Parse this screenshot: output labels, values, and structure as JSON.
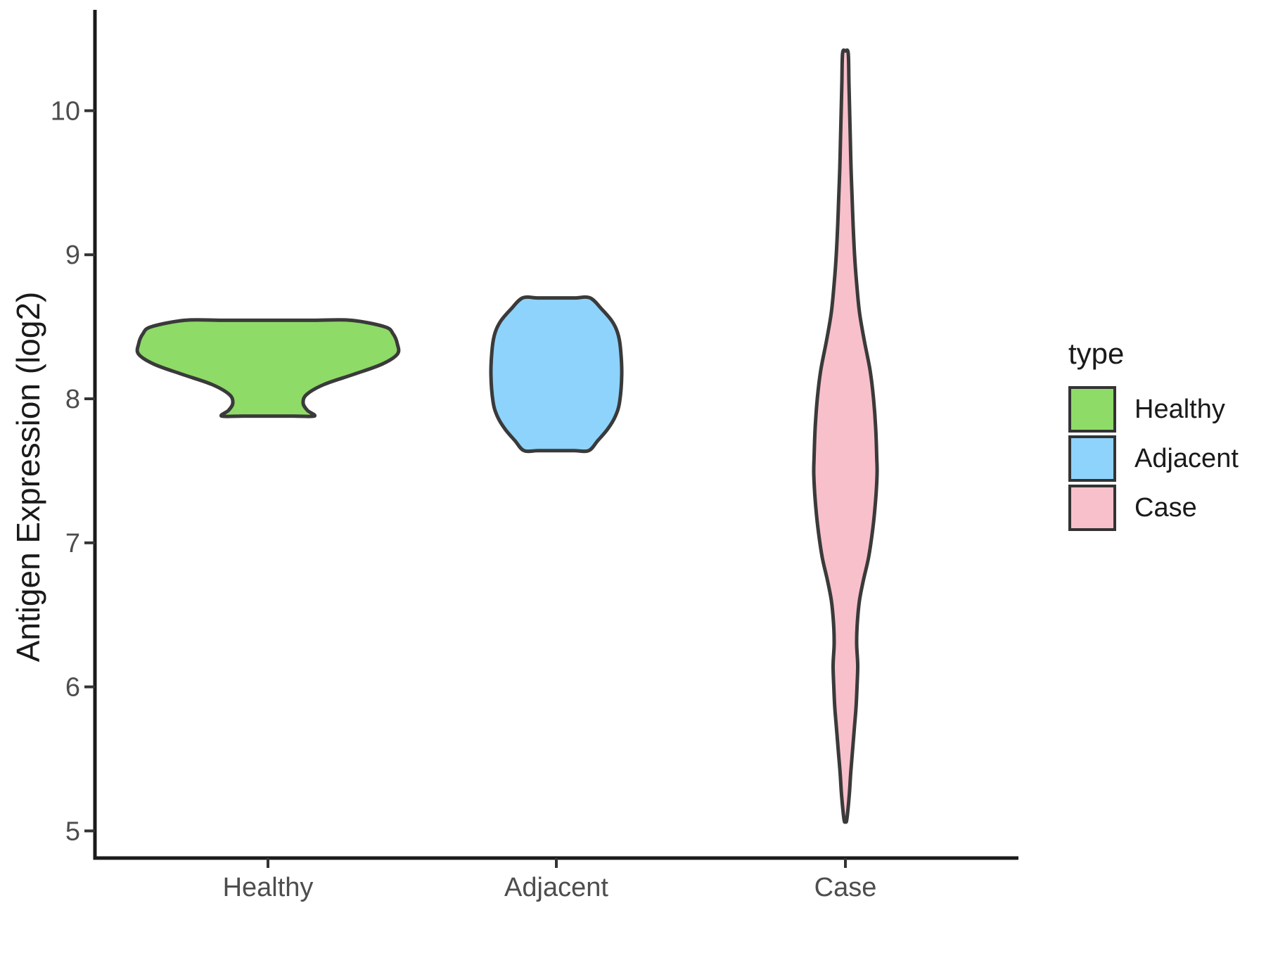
{
  "figure": {
    "background": "#ffffff"
  },
  "axes": {
    "y_title": "Antigen Expression (log2)",
    "x_title": "",
    "tick_label_color": "#4d4d4d",
    "axis_line_color": "#1a1a1a"
  },
  "legend": {
    "title": "type",
    "items": [
      {
        "label": "Healthy",
        "color": "#8edb68"
      },
      {
        "label": "Adjacent",
        "color": "#8ed3fb"
      },
      {
        "label": "Case",
        "color": "#f8c0cb"
      }
    ]
  },
  "chart_data": {
    "type": "violin",
    "title": "",
    "xlabel": "",
    "ylabel": "Antigen Expression (log2)",
    "categories": [
      "Healthy",
      "Adjacent",
      "Case"
    ],
    "y_ticks": [
      5,
      6,
      7,
      8,
      9,
      10
    ],
    "ylim": [
      4.8,
      10.7
    ],
    "grid": false,
    "legend_position": "right",
    "legend_title": "type",
    "profile_units": "[y_value, half_width_px]",
    "series": [
      {
        "name": "Healthy",
        "fill": "#8edb68",
        "outline": "#3a3a3a",
        "y_range": [
          7.88,
          8.55
        ],
        "peak_value": 8.33,
        "profile": [
          [
            8.545,
            118
          ],
          [
            8.5,
            166
          ],
          [
            8.45,
            178
          ],
          [
            8.38,
            184
          ],
          [
            8.31,
            184
          ],
          [
            8.24,
            162
          ],
          [
            8.17,
            122
          ],
          [
            8.1,
            80
          ],
          [
            8.03,
            55
          ],
          [
            7.97,
            50
          ],
          [
            7.92,
            56
          ],
          [
            7.88,
            66
          ]
        ]
      },
      {
        "name": "Adjacent",
        "fill": "#8ed3fb",
        "outline": "#3a3a3a",
        "y_range": [
          7.64,
          8.7
        ],
        "peak_value": 8.17,
        "profile": [
          [
            8.7,
            48
          ],
          [
            8.62,
            65
          ],
          [
            8.54,
            79
          ],
          [
            8.46,
            87
          ],
          [
            8.36,
            91
          ],
          [
            8.17,
            93
          ],
          [
            7.98,
            90
          ],
          [
            7.88,
            84
          ],
          [
            7.79,
            73
          ],
          [
            7.71,
            59
          ],
          [
            7.64,
            46
          ]
        ]
      },
      {
        "name": "Case",
        "fill": "#f8c0cb",
        "outline": "#3a3a3a",
        "y_range": [
          5.08,
          10.4
        ],
        "peak_value": 7.5,
        "profile": [
          [
            10.4,
            4
          ],
          [
            10.2,
            5
          ],
          [
            10.0,
            6
          ],
          [
            9.8,
            7
          ],
          [
            9.6,
            8
          ],
          [
            9.4,
            9.5
          ],
          [
            9.2,
            11
          ],
          [
            9.0,
            13
          ],
          [
            8.8,
            16
          ],
          [
            8.6,
            20
          ],
          [
            8.4,
            27
          ],
          [
            8.2,
            35
          ],
          [
            8.0,
            40
          ],
          [
            7.8,
            43
          ],
          [
            7.6,
            44.5
          ],
          [
            7.48,
            45
          ],
          [
            7.3,
            43
          ],
          [
            7.1,
            39
          ],
          [
            6.9,
            33
          ],
          [
            6.75,
            26
          ],
          [
            6.6,
            20
          ],
          [
            6.45,
            17
          ],
          [
            6.3,
            16
          ],
          [
            6.15,
            17.5
          ],
          [
            6.0,
            16.5
          ],
          [
            5.85,
            15
          ],
          [
            5.7,
            12.5
          ],
          [
            5.55,
            10
          ],
          [
            5.4,
            7.5
          ],
          [
            5.25,
            5.5
          ],
          [
            5.08,
            2
          ]
        ]
      }
    ]
  }
}
